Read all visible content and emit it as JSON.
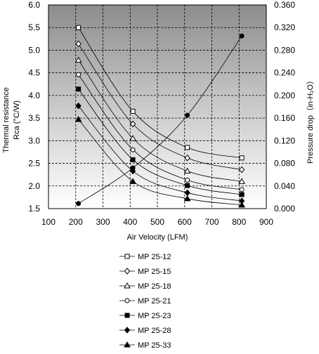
{
  "chart_data": {
    "type": "line",
    "xlabel": "Air Velocity (LFM)",
    "ylabel_left": [
      "Thermal resistance",
      "Rca (°C/W)"
    ],
    "ylabel_right": "Pressure drop（in-H₂O）",
    "xlim": [
      100,
      900
    ],
    "ylim_left": [
      1.5,
      6.0
    ],
    "ylim_right": [
      0.0,
      0.36
    ],
    "x_ticks": [
      "100",
      "200",
      "300",
      "400",
      "500",
      "600",
      "700",
      "800",
      "900"
    ],
    "y_ticks_left": [
      "1.5",
      "2.0",
      "2.5",
      "3.0",
      "3.5",
      "4.0",
      "4.5",
      "5.0",
      "5.5",
      "6.0"
    ],
    "y_ticks_right": [
      "0.000",
      "0.040",
      "0.080",
      "0.120",
      "0.160",
      "0.200",
      "0.240",
      "0.280",
      "0.320",
      "0.360"
    ],
    "grid": true,
    "legend_position": "bottom",
    "series": [
      {
        "name": "MP 25-12",
        "marker": "square-open",
        "axis": "left",
        "points": [
          [
            210,
            5.5
          ],
          [
            410,
            3.65
          ],
          [
            610,
            2.85
          ],
          [
            810,
            2.62
          ]
        ]
      },
      {
        "name": "MP 25-15",
        "marker": "diamond-open",
        "axis": "left",
        "points": [
          [
            210,
            5.14
          ],
          [
            410,
            3.37
          ],
          [
            610,
            2.62
          ],
          [
            810,
            2.36
          ]
        ]
      },
      {
        "name": "MP 25-18",
        "marker": "triangle-open",
        "axis": "left",
        "points": [
          [
            210,
            4.78
          ],
          [
            410,
            3.05
          ],
          [
            610,
            2.33
          ],
          [
            810,
            2.1
          ]
        ]
      },
      {
        "name": "MP 25-21",
        "marker": "circle-open",
        "axis": "left",
        "points": [
          [
            210,
            4.46
          ],
          [
            410,
            2.8
          ],
          [
            610,
            2.13
          ],
          [
            810,
            1.92
          ]
        ]
      },
      {
        "name": "MP 25-23",
        "marker": "square-filled",
        "axis": "left",
        "points": [
          [
            210,
            4.14
          ],
          [
            410,
            2.58
          ],
          [
            610,
            2.01
          ],
          [
            810,
            1.81
          ]
        ]
      },
      {
        "name": "MP 25-28",
        "marker": "diamond-filled",
        "axis": "left",
        "points": [
          [
            210,
            3.77
          ],
          [
            410,
            2.33
          ],
          [
            610,
            1.85
          ],
          [
            810,
            1.67
          ]
        ]
      },
      {
        "name": "MP 25-33",
        "marker": "triangle-filled",
        "axis": "left",
        "points": [
          [
            210,
            3.47
          ],
          [
            410,
            2.1
          ],
          [
            610,
            1.72
          ],
          [
            810,
            1.58
          ]
        ]
      }
    ],
    "pressure_curve": {
      "marker": "circle-filled",
      "axis": "right",
      "points": [
        [
          210,
          0.009
        ],
        [
          410,
          0.072
        ],
        [
          610,
          0.165
        ],
        [
          810,
          0.305
        ]
      ]
    }
  }
}
